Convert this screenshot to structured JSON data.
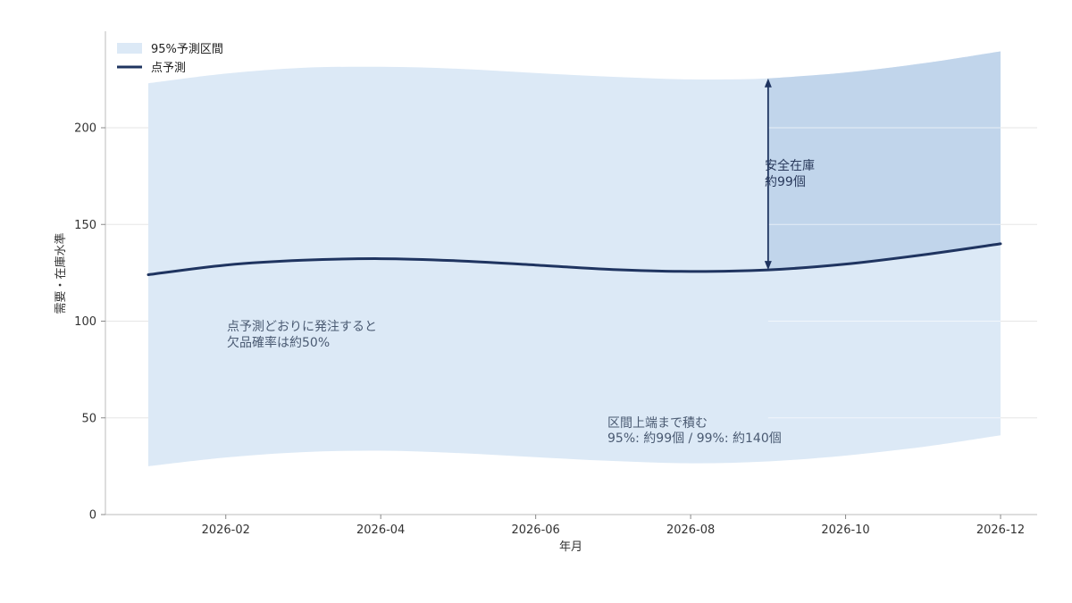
{
  "chart_data": {
    "type": "line",
    "xlabel": "年月",
    "ylabel": "需要・在庫水準",
    "ylim": [
      0,
      250
    ],
    "y_ticks": [
      0,
      50,
      100,
      150,
      200
    ],
    "x_ticks": [
      "2026-02",
      "2026-04",
      "2026-06",
      "2026-08",
      "2026-10",
      "2026-12"
    ],
    "x": [
      "2026-01",
      "2026-02",
      "2026-03",
      "2026-04",
      "2026-05",
      "2026-06",
      "2026-07",
      "2026-08",
      "2026-09",
      "2026-10",
      "2026-11",
      "2026-12"
    ],
    "series": [
      {
        "name": "点予測",
        "kind": "line",
        "color": "#1f3460",
        "values": [
          124,
          129,
          131.5,
          132.3,
          131.2,
          129,
          126.7,
          125.7,
          126.5,
          129.5,
          134.3,
          140
        ]
      },
      {
        "name": "95%予測区間",
        "kind": "band",
        "color": "#dce9f6",
        "upper": [
          223,
          228,
          231,
          231.5,
          230.5,
          228.3,
          226.3,
          225,
          225.5,
          228.5,
          233.3,
          239.5
        ],
        "lower": [
          25,
          29.5,
          32.3,
          33,
          31.8,
          29.7,
          27.7,
          26.5,
          27.5,
          30.5,
          35,
          41
        ]
      }
    ],
    "highlight_region": {
      "from": "2026-09",
      "to": "2026-12",
      "color": "#c1d5eb"
    },
    "safety_arrow": {
      "x": "2026-09",
      "from": 126.5,
      "to": 225.5,
      "color": "#1f3460"
    },
    "grid": {
      "y": true,
      "x": false
    },
    "legend": {
      "placement": "top-left"
    },
    "annotations": {
      "safety_stock": [
        "安全在庫",
        "約99個"
      ],
      "point_forecast_note": [
        "点予測どおりに発注すると",
        "欠品確率は約50%"
      ],
      "upper_bound_note": [
        "区間上端まで積む",
        "95%: 約99個 / 99%: 約140個"
      ]
    }
  }
}
